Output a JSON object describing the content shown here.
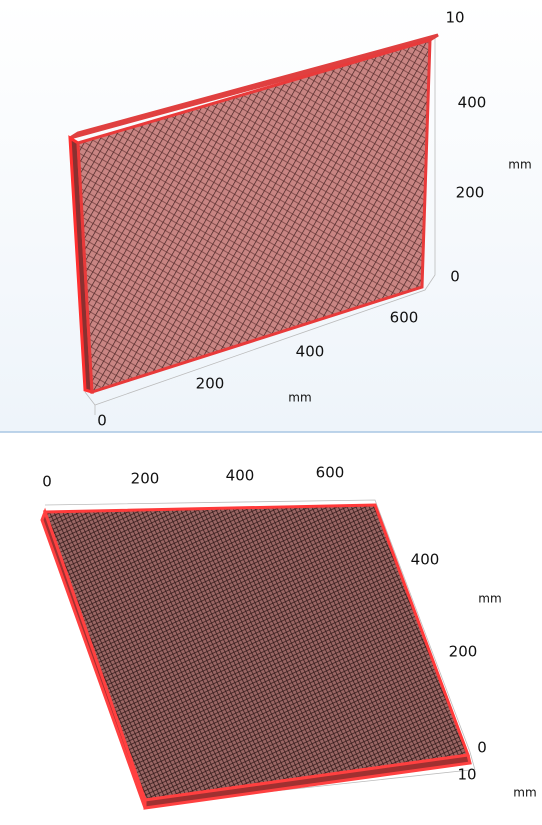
{
  "panels": [
    {
      "labels": [
        "10",
        "400",
        "mm",
        "200",
        "0",
        "600",
        "400",
        "200",
        "mm",
        "0"
      ]
    },
    {
      "labels": [
        "0",
        "200",
        "400",
        "600",
        "400",
        "mm",
        "200",
        "0",
        "10",
        "mm"
      ]
    }
  ]
}
